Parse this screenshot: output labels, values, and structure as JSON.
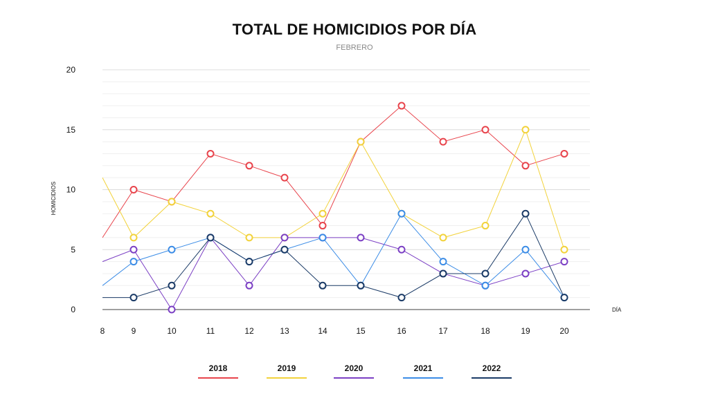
{
  "chart_data": {
    "type": "line",
    "title": "TOTAL DE HOMICIDIOS POR DÍA",
    "subtitle": "FEBRERO",
    "xlabel": "DÍA",
    "ylabel": "HOMICIDIOS",
    "x": [
      8,
      9,
      10,
      11,
      12,
      13,
      14,
      15,
      16,
      17,
      18,
      19,
      20
    ],
    "x_tick_labels": [
      "8",
      "9",
      "10",
      "11",
      "12",
      "13",
      "14",
      "15",
      "16",
      "17",
      "18",
      "19",
      "20"
    ],
    "y_ticks": [
      0,
      5,
      10,
      15,
      20
    ],
    "y_tick_labels": [
      "0",
      "5",
      "10",
      "15",
      "20"
    ],
    "ylim": [
      0,
      20
    ],
    "grid": true,
    "legend_position": "bottom",
    "series": [
      {
        "name": "2018",
        "color": "#e8434b",
        "values": [
          6,
          10,
          9,
          13,
          12,
          11,
          7,
          14,
          17,
          14,
          15,
          12,
          13
        ]
      },
      {
        "name": "2019",
        "color": "#f2d23a",
        "values": [
          11,
          6,
          9,
          8,
          6,
          6,
          8,
          14,
          8,
          6,
          7,
          15,
          5
        ]
      },
      {
        "name": "2020",
        "color": "#7b3fc4",
        "values": [
          4,
          5,
          0,
          6,
          2,
          6,
          6,
          6,
          5,
          3,
          2,
          3,
          4
        ]
      },
      {
        "name": "2021",
        "color": "#3b8ce6",
        "values": [
          2,
          4,
          5,
          6,
          4,
          5,
          6,
          2,
          8,
          4,
          2,
          5,
          1
        ]
      },
      {
        "name": "2022",
        "color": "#1a3a66",
        "values": [
          1,
          1,
          2,
          6,
          4,
          5,
          2,
          2,
          1,
          3,
          3,
          8,
          1
        ]
      }
    ]
  }
}
